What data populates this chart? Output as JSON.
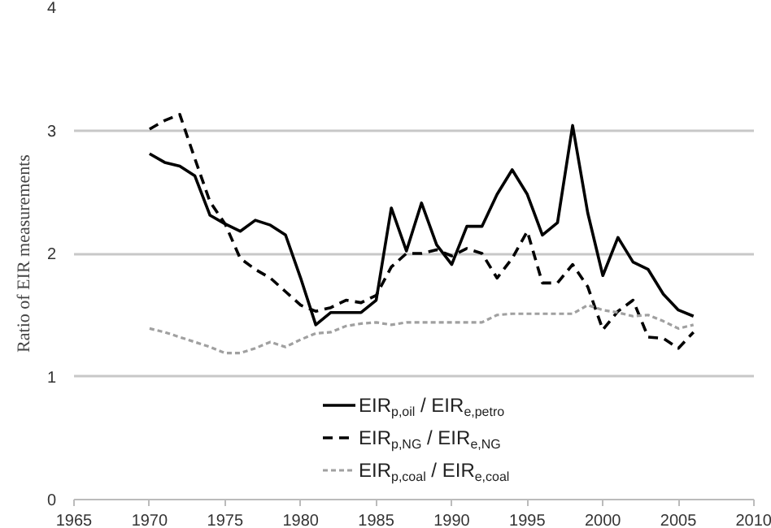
{
  "chart_data": {
    "type": "line",
    "ylabel": "Ratio of EIR measurements",
    "x": [
      1970,
      1971,
      1972,
      1973,
      1974,
      1975,
      1976,
      1977,
      1978,
      1979,
      1980,
      1981,
      1982,
      1983,
      1984,
      1985,
      1986,
      1987,
      1988,
      1989,
      1990,
      1991,
      1992,
      1993,
      1994,
      1995,
      1996,
      1997,
      1998,
      1999,
      2000,
      2001,
      2002,
      2003,
      2004,
      2005,
      2006
    ],
    "series": [
      {
        "name": "EIR$_{p,oil}$ / EIR$_{e,petro}$",
        "color": "#000000",
        "line_style": "solid",
        "values": [
          2.81,
          2.74,
          2.71,
          2.63,
          2.31,
          2.24,
          2.18,
          2.27,
          2.23,
          2.15,
          1.8,
          1.42,
          1.52,
          1.52,
          1.52,
          1.62,
          2.37,
          2.02,
          2.41,
          2.07,
          1.91,
          2.22,
          2.22,
          2.48,
          2.68,
          2.48,
          2.15,
          2.25,
          3.04,
          2.33,
          1.82,
          2.13,
          1.93,
          1.87,
          1.67,
          1.54,
          1.49
        ]
      },
      {
        "name": "EIR$_{p,NG}$ / EIR$_{e,NG}$",
        "color": "#000000",
        "line_style": "dashed",
        "values": [
          3.01,
          3.08,
          3.13,
          2.77,
          2.42,
          2.24,
          1.96,
          1.87,
          1.8,
          1.69,
          1.58,
          1.53,
          1.56,
          1.62,
          1.6,
          1.66,
          1.89,
          2.0,
          2.0,
          2.03,
          1.98,
          2.04,
          2.0,
          1.8,
          1.96,
          2.18,
          1.76,
          1.76,
          1.91,
          1.73,
          1.38,
          1.53,
          1.62,
          1.32,
          1.31,
          1.23,
          1.36
        ]
      },
      {
        "name": "EIR$_{p,coal}$ / EIR$_{e,coal}$",
        "color": "#a0a0a0",
        "line_style": "dashed",
        "values": [
          1.39,
          1.36,
          1.32,
          1.28,
          1.24,
          1.19,
          1.19,
          1.23,
          1.28,
          1.24,
          1.3,
          1.35,
          1.36,
          1.41,
          1.43,
          1.44,
          1.42,
          1.44,
          1.44,
          1.44,
          1.44,
          1.44,
          1.44,
          1.5,
          1.51,
          1.51,
          1.51,
          1.51,
          1.51,
          1.58,
          1.54,
          1.52,
          1.49,
          1.5,
          1.45,
          1.39,
          1.42
        ]
      }
    ],
    "xlim": [
      1965,
      2010
    ],
    "xticks": [
      1965,
      1970,
      1975,
      1980,
      1985,
      1990,
      1995,
      2000,
      2005,
      2010
    ],
    "ylim": [
      0,
      4
    ],
    "yticks": [
      0,
      1,
      2,
      3,
      4
    ],
    "grid": "y",
    "legend": "bottom"
  }
}
